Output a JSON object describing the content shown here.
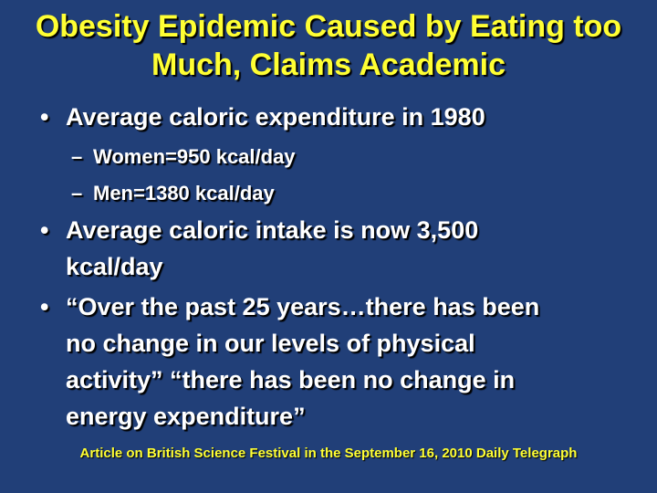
{
  "title": "Obesity Epidemic Caused by Eating too Much, Claims Academic",
  "bullets": [
    {
      "text": "Average caloric expenditure in 1980",
      "subs": [
        "Women=950 kcal/day",
        "Men=1380 kcal/day"
      ]
    },
    {
      "text": "Average caloric intake is now 3,500 kcal/day"
    },
    {
      "text": "“Over the past 25 years…there has been no change in our levels of physical activity” “there has been no change in energy expenditure”"
    }
  ],
  "footer": "Article on British Science Festival in the September 16, 2010 Daily Telegraph"
}
